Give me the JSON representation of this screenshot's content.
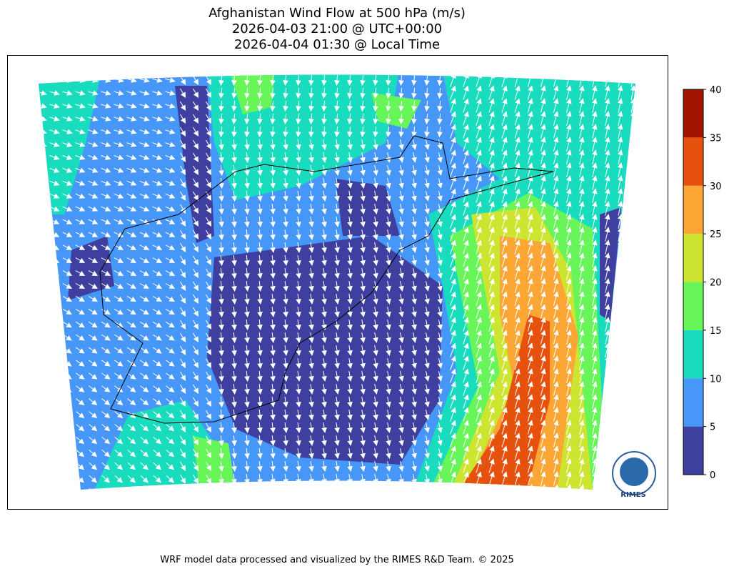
{
  "title": [
    "Afghanistan Wind Flow at 500 hPa (m/s)",
    "2026-04-03 21:00 @ UTC+00:00",
    "2026-04-04 01:30 @ Local Time"
  ],
  "colorbar": {
    "lim": [
      0,
      40
    ],
    "ticks": [
      0,
      5,
      10,
      15,
      20,
      25,
      30,
      35,
      40
    ],
    "colors": [
      "#3f3fa0",
      "#4797f9",
      "#19dcbe",
      "#67f55a",
      "#cde530",
      "#fba635",
      "#e7510e",
      "#a31503"
    ]
  },
  "logo": "RIMES",
  "footer": "WRF model data processed and visualized by the RIMES R&D Team. © 2025"
}
